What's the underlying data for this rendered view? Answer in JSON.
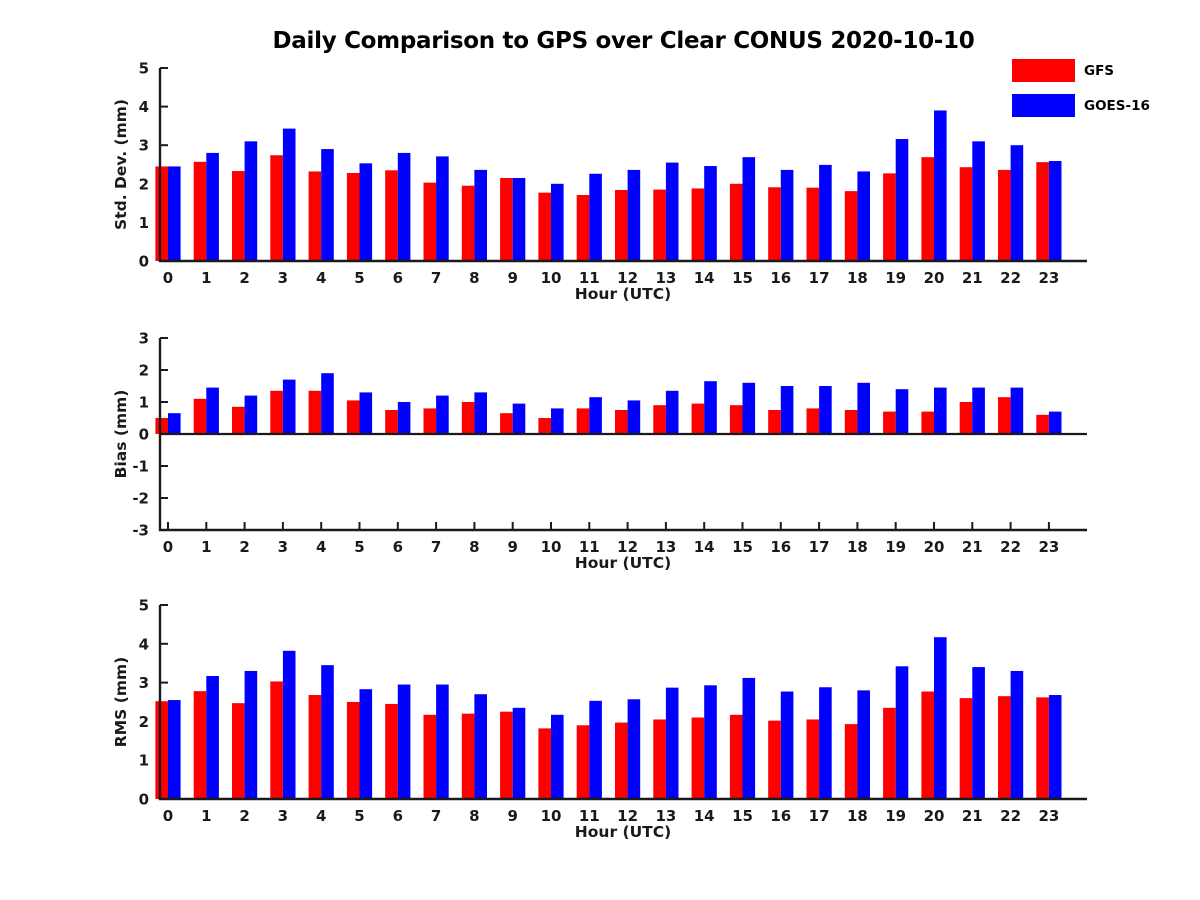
{
  "title": "Daily Comparison to GPS over Clear CONUS 2020-10-10",
  "legend": {
    "items": [
      {
        "label": "GFS",
        "color": "#ff0000"
      },
      {
        "label": "GOES-16",
        "color": "#0000ff"
      }
    ]
  },
  "colors": {
    "gfs": "#ff0000",
    "goes16": "#0000ff",
    "axis": "#1a1a1a",
    "background": "#ffffff"
  },
  "chart_data": [
    {
      "type": "bar",
      "panel": "std-dev",
      "ylabel": "Std. Dev. (mm)",
      "xlabel": "Hour (UTC)",
      "ylim": [
        0,
        5
      ],
      "yticks": [
        0,
        1,
        2,
        3,
        4,
        5
      ],
      "grid": false,
      "legend_position": "top-right-outside",
      "categories": [
        "0",
        "1",
        "2",
        "3",
        "4",
        "5",
        "6",
        "7",
        "8",
        "9",
        "10",
        "11",
        "12",
        "13",
        "14",
        "15",
        "16",
        "17",
        "18",
        "19",
        "20",
        "21",
        "22",
        "23"
      ],
      "series": [
        {
          "name": "GFS",
          "color": "#ff0000",
          "values": [
            2.45,
            2.57,
            2.33,
            2.74,
            2.32,
            2.28,
            2.35,
            2.03,
            1.95,
            2.15,
            1.77,
            1.71,
            1.84,
            1.85,
            1.88,
            2.0,
            1.91,
            1.9,
            1.81,
            2.27,
            2.69,
            2.43,
            2.36,
            2.56
          ]
        },
        {
          "name": "GOES-16",
          "color": "#0000ff",
          "values": [
            2.45,
            2.8,
            3.1,
            3.43,
            2.9,
            2.53,
            2.8,
            2.71,
            2.36,
            2.15,
            2.0,
            2.26,
            2.36,
            2.55,
            2.46,
            2.69,
            2.36,
            2.49,
            2.32,
            3.16,
            3.9,
            3.1,
            3.0,
            2.59
          ]
        }
      ]
    },
    {
      "type": "bar",
      "panel": "bias",
      "ylabel": "Bias (mm)",
      "xlabel": "Hour (UTC)",
      "ylim": [
        -3,
        3
      ],
      "yticks": [
        -3,
        -2,
        -1,
        0,
        1,
        2,
        3
      ],
      "grid": false,
      "categories": [
        "0",
        "1",
        "2",
        "3",
        "4",
        "5",
        "6",
        "7",
        "8",
        "9",
        "10",
        "11",
        "12",
        "13",
        "14",
        "15",
        "16",
        "17",
        "18",
        "19",
        "20",
        "21",
        "22",
        "23"
      ],
      "series": [
        {
          "name": "GFS",
          "color": "#ff0000",
          "values": [
            0.5,
            1.1,
            0.85,
            1.35,
            1.35,
            1.05,
            0.75,
            0.8,
            1.0,
            0.65,
            0.5,
            0.8,
            0.75,
            0.9,
            0.95,
            0.9,
            0.75,
            0.8,
            0.75,
            0.7,
            0.7,
            1.0,
            1.15,
            0.6
          ]
        },
        {
          "name": "GOES-16",
          "color": "#0000ff",
          "values": [
            0.65,
            1.45,
            1.2,
            1.7,
            1.9,
            1.3,
            1.0,
            1.2,
            1.3,
            0.95,
            0.8,
            1.15,
            1.05,
            1.35,
            1.65,
            1.6,
            1.5,
            1.5,
            1.6,
            1.4,
            1.45,
            1.45,
            1.45,
            0.7
          ]
        }
      ]
    },
    {
      "type": "bar",
      "panel": "rms",
      "ylabel": "RMS (mm)",
      "xlabel": "Hour (UTC)",
      "ylim": [
        0,
        5
      ],
      "yticks": [
        0,
        1,
        2,
        3,
        4,
        5
      ],
      "grid": false,
      "categories": [
        "0",
        "1",
        "2",
        "3",
        "4",
        "5",
        "6",
        "7",
        "8",
        "9",
        "10",
        "11",
        "12",
        "13",
        "14",
        "15",
        "16",
        "17",
        "18",
        "19",
        "20",
        "21",
        "22",
        "23"
      ],
      "series": [
        {
          "name": "GFS",
          "color": "#ff0000",
          "values": [
            2.52,
            2.78,
            2.47,
            3.03,
            2.68,
            2.5,
            2.45,
            2.17,
            2.2,
            2.25,
            1.82,
            1.9,
            1.97,
            2.05,
            2.1,
            2.17,
            2.02,
            2.05,
            1.93,
            2.35,
            2.77,
            2.6,
            2.65,
            2.62
          ]
        },
        {
          "name": "GOES-16",
          "color": "#0000ff",
          "values": [
            2.55,
            3.17,
            3.3,
            3.82,
            3.45,
            2.83,
            2.95,
            2.95,
            2.7,
            2.35,
            2.17,
            2.53,
            2.57,
            2.87,
            2.93,
            3.12,
            2.77,
            2.88,
            2.8,
            3.42,
            4.17,
            3.4,
            3.3,
            2.68
          ]
        }
      ]
    }
  ]
}
